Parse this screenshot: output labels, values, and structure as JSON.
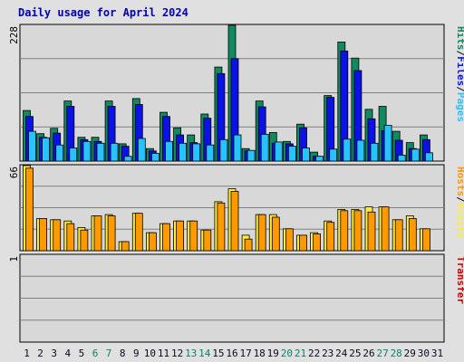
{
  "title": "Daily usage for April 2024",
  "colors": {
    "hits": "#118a5f",
    "files": "#0a12e6",
    "pages": "#26c4ff",
    "visits": "#ffee33",
    "hosts": "#ff9900",
    "transfer": "#cc0000",
    "weekend": "#10806a",
    "weekday": "#0a0a20",
    "panel": "#d8d8d8",
    "grid": "#808080"
  },
  "chart_data": {
    "type": "bar",
    "categories": [
      "1",
      "2",
      "3",
      "4",
      "5",
      "6",
      "7",
      "8",
      "9",
      "10",
      "11",
      "12",
      "13",
      "14",
      "15",
      "16",
      "17",
      "18",
      "19",
      "20",
      "21",
      "22",
      "23",
      "24",
      "25",
      "26",
      "27",
      "28",
      "29",
      "30",
      "31"
    ],
    "weekend_days": [
      "6",
      "7",
      "13",
      "14",
      "20",
      "21",
      "27",
      "28"
    ],
    "panels": [
      {
        "ymax_label": "228",
        "ymax": 228,
        "label_parts": [
          {
            "text": "Hits",
            "color_key": "hits"
          },
          {
            "text": "/",
            "color_key": "weekday"
          },
          {
            "text": "Files",
            "color_key": "files"
          },
          {
            "text": "/",
            "color_key": "weekday"
          },
          {
            "text": "Pages",
            "color_key": "pages"
          }
        ],
        "series": [
          {
            "name": "Hits",
            "color_key": "hits",
            "values": [
              85,
              46,
              55,
              101,
              40,
              40,
              101,
              29,
              105,
              21,
              82,
              56,
              44,
              79,
              158,
              228,
              21,
              101,
              48,
              33,
              62,
              15,
              110,
              200,
              173,
              87,
              92,
              50,
              31,
              44,
              null
            ]
          },
          {
            "name": "Files",
            "color_key": "files",
            "values": [
              75,
              40,
              47,
              92,
              36,
              33,
              92,
              25,
              95,
              17,
              75,
              44,
              31,
              72,
              147,
              172,
              17,
              91,
              30,
              29,
              56,
              8,
              107,
              185,
              152,
              71,
              51,
              35,
              21,
              36,
              null
            ]
          },
          {
            "name": "Pages",
            "color_key": "pages",
            "values": [
              50,
              39,
              27,
              22,
              33,
              30,
              30,
              8,
              38,
              13,
              33,
              30,
              29,
              27,
              36,
              44,
              18,
              45,
              32,
              25,
              22,
              8,
              20,
              37,
              35,
              30,
              60,
              10,
              20,
              14,
              null
            ]
          }
        ]
      },
      {
        "ymax_label": "66",
        "ymax": 66,
        "label_parts": [
          {
            "text": "Hosts",
            "color_key": "hosts"
          },
          {
            "text": "/",
            "color_key": "weekday"
          },
          {
            "text": "Visits",
            "color_key": "visits"
          }
        ],
        "series": [
          {
            "name": "Visits",
            "color_key": "visits",
            "values": [
              66,
              25,
              24,
              23,
              18,
              27,
              28,
              7,
              29,
              14,
              21,
              23,
              23,
              16,
              38,
              48,
              12,
              28,
              28,
              17,
              12,
              14,
              23,
              32,
              32,
              34,
              34,
              24,
              27,
              17,
              null
            ]
          },
          {
            "name": "Hosts",
            "color_key": "hosts",
            "values": [
              64,
              25,
              24,
              21,
              16,
              27,
              27,
              7,
              29,
              14,
              21,
              23,
              23,
              16,
              37,
              46,
              9,
              28,
              26,
              17,
              12,
              13,
              22,
              31,
              31,
              30,
              34,
              24,
              25,
              17,
              null
            ]
          }
        ]
      },
      {
        "ymax_label": "1",
        "ymax": 1,
        "label_parts": [
          {
            "text": "Transfer",
            "color_key": "transfer"
          }
        ],
        "series": [
          {
            "name": "Transfer",
            "color_key": "transfer",
            "values": [
              0,
              0,
              0,
              0,
              0,
              0,
              0,
              0,
              0,
              0,
              0,
              0,
              0,
              0,
              0,
              0,
              0,
              0,
              0,
              0,
              0,
              0,
              0,
              0,
              0,
              0,
              0,
              0,
              0,
              0,
              0
            ]
          }
        ]
      }
    ]
  }
}
